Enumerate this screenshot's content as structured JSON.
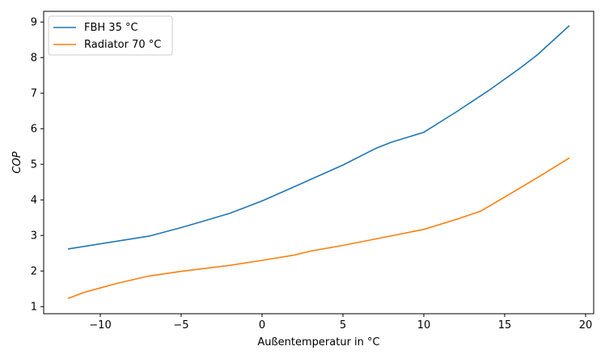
{
  "chart_data": {
    "type": "line",
    "xlabel": "Außentemperatur in °C",
    "ylabel": "COP",
    "xlim": [
      -13.5,
      20.5
    ],
    "ylim": [
      0.8,
      9.3
    ],
    "xticks": [
      -10,
      -5,
      0,
      5,
      10,
      15,
      20
    ],
    "xtick_labels": [
      "−10",
      "−5",
      "0",
      "5",
      "10",
      "15",
      "20"
    ],
    "yticks": [
      1,
      2,
      3,
      4,
      5,
      6,
      7,
      8,
      9
    ],
    "grid": false,
    "legend_position": "top-left",
    "series": [
      {
        "name": "FBH 35 °C",
        "color": "#1f77b4",
        "x": [
          -12,
          -7,
          -5,
          -2,
          0,
          2,
          5,
          7,
          8,
          10,
          12,
          14,
          16,
          17,
          19
        ],
        "y": [
          2.62,
          2.98,
          3.22,
          3.62,
          3.97,
          4.37,
          4.98,
          5.44,
          5.62,
          5.9,
          6.47,
          7.07,
          7.72,
          8.07,
          8.9
        ]
      },
      {
        "name": "Radiator 70 °C",
        "color": "#ff7f0e",
        "x": [
          -12,
          -11,
          -9,
          -7,
          -5,
          -2,
          0,
          2,
          3,
          5,
          7,
          10,
          12,
          13.5,
          15,
          17,
          19
        ],
        "y": [
          1.23,
          1.4,
          1.65,
          1.86,
          1.99,
          2.16,
          2.3,
          2.45,
          2.56,
          2.72,
          2.9,
          3.17,
          3.45,
          3.68,
          4.08,
          4.62,
          5.18
        ]
      }
    ]
  }
}
